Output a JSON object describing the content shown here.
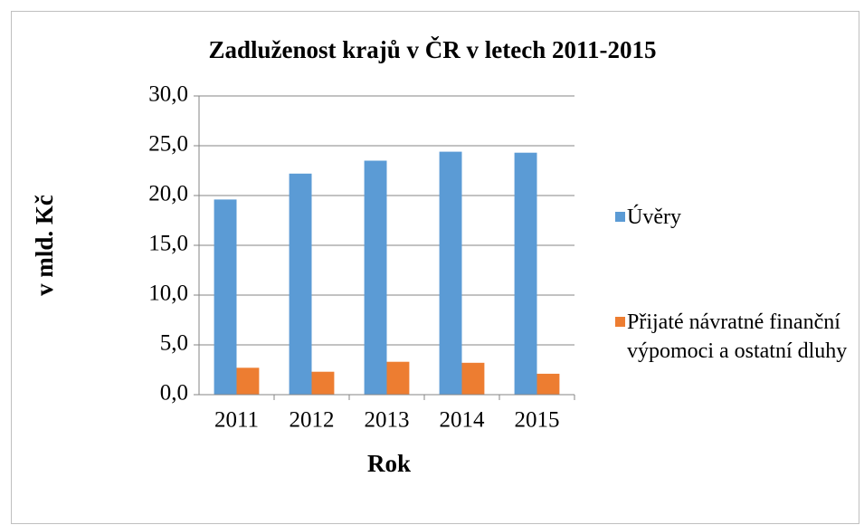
{
  "chart_data": {
    "type": "bar",
    "title": "Zadluženost krajů v ČR v letech 2011-2015",
    "x_label": "Rok",
    "y_label": "v mld. Kč",
    "categories": [
      "2011",
      "2012",
      "2013",
      "2014",
      "2015"
    ],
    "series": [
      {
        "name": "Úvěry",
        "color": "#5b9bd5",
        "values": [
          19.6,
          22.2,
          23.5,
          24.4,
          24.3
        ]
      },
      {
        "name": "Přijaté návratné finanční výpomoci a ostatní dluhy",
        "color": "#ed7d31",
        "values": [
          2.7,
          2.3,
          3.3,
          3.2,
          2.1
        ]
      }
    ],
    "ylim": [
      0,
      30
    ],
    "yticks": [
      {
        "value": 0,
        "label": "0,0"
      },
      {
        "value": 5,
        "label": "5,0"
      },
      {
        "value": 10,
        "label": "10,0"
      },
      {
        "value": 15,
        "label": "15,0"
      },
      {
        "value": 20,
        "label": "20,0"
      },
      {
        "value": 25,
        "label": "25,0"
      },
      {
        "value": 30,
        "label": "30,0"
      }
    ],
    "grid": true,
    "legend": "right"
  }
}
